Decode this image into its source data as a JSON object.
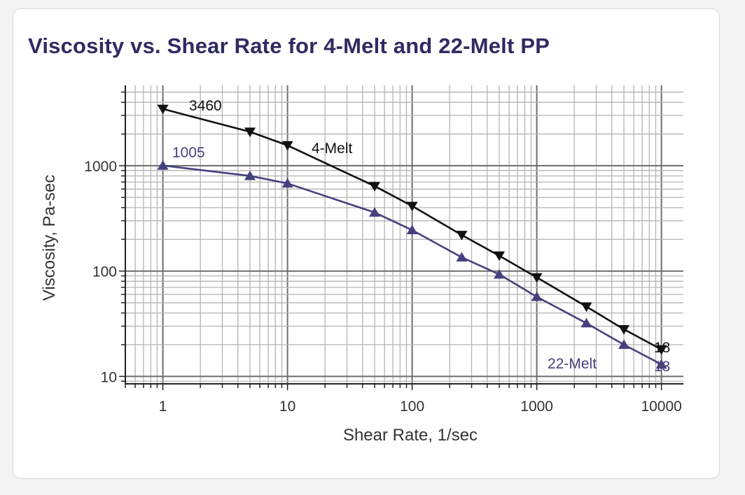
{
  "chart_data": {
    "type": "line",
    "title": "Viscosity vs. Shear Rate for 4-Melt and 22-Melt PP",
    "xlabel": "Shear Rate, 1/sec",
    "ylabel": "Viscosity, Pa-sec",
    "xscale": "log",
    "yscale": "log",
    "xlim": [
      0.5,
      15000
    ],
    "ylim": [
      8.5,
      5800
    ],
    "grid": true,
    "x_ticks": [
      1,
      10,
      100,
      1000,
      10000
    ],
    "x_tick_labels": [
      "1",
      "10",
      "100",
      "1000",
      "10000"
    ],
    "y_ticks": [
      10,
      100,
      1000
    ],
    "y_tick_labels": [
      "10",
      "100",
      "1000"
    ],
    "series": [
      {
        "name": "4-Melt",
        "color": "#111111",
        "marker": "triangle-down",
        "x": [
          1,
          5,
          10,
          50,
          100,
          250,
          500,
          1000,
          2500,
          5000,
          10000
        ],
        "y": [
          3460,
          2100,
          1560,
          640,
          415,
          220,
          140,
          87,
          46,
          28,
          18
        ]
      },
      {
        "name": "22-Melt",
        "color": "#45417e",
        "marker": "triangle-up",
        "x": [
          1,
          5,
          10,
          50,
          100,
          250,
          500,
          1000,
          2500,
          5000,
          10000
        ],
        "y": [
          1005,
          800,
          680,
          360,
          245,
          135,
          93,
          57,
          32,
          20,
          13
        ]
      }
    ],
    "annotations": [
      {
        "text": "3460",
        "series": "4-Melt"
      },
      {
        "text": "18",
        "series": "4-Melt"
      },
      {
        "text": "1005",
        "series": "22-Melt"
      },
      {
        "text": "13",
        "series": "22-Melt"
      }
    ]
  }
}
